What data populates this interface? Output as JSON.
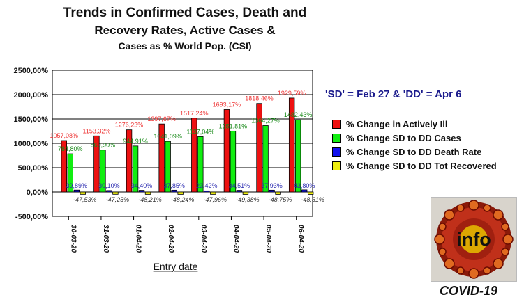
{
  "title_lines": [
    "Trends in Confirmed Cases, Death and",
    "Recovery Rates, Active Cases &",
    "Cases as % World Pop. (CSI)"
  ],
  "annotation": "'SD' = Feb 27 & 'DD' = Apr 6",
  "logo": {
    "text": "info",
    "caption": "COVID-19"
  },
  "chart_data": {
    "type": "bar",
    "xlabel": "Entry date",
    "ylabel": "",
    "ylim": [
      -500,
      2500
    ],
    "yticks": [
      -500,
      0,
      500,
      1000,
      1500,
      2000,
      2500
    ],
    "ytick_labels": [
      "-500,00%",
      "0,00%",
      "500,00%",
      "1000,00%",
      "1500,00%",
      "2000,00%",
      "2500,00%"
    ],
    "grid": true,
    "legend_position": "right",
    "categories": [
      "30-03-20",
      "31-03-20",
      "01-04-20",
      "02-04-20",
      "03-04-20",
      "04-04-20",
      "05-04-20",
      "06-04-20"
    ],
    "series": [
      {
        "name": "% Change in Actively Ill",
        "color": "#ee1111",
        "label_color": "#ee3333",
        "values": [
          1057.08,
          1153.32,
          1276.23,
          1397.67,
          1517.24,
          1693.17,
          1818.46,
          1929.59
        ],
        "labels": [
          "1057,08%",
          "1153,32%",
          "1276,23%",
          "1397,67%",
          "1517,24%",
          "1693,17%",
          "1818,46%",
          "1929,59%"
        ]
      },
      {
        "name": "% Change SD to DD Cases",
        "color": "#11ee11",
        "label_color": "#1a8a1a",
        "values": [
          784.8,
          860.9,
          944.91,
          1041.09,
          1137.04,
          1251.81,
          1364.27,
          1482.43
        ],
        "labels": [
          "784,80%",
          "860,90%",
          "944,91%",
          "1041,09%",
          "1137,04%",
          "1251,81%",
          "1364,27%",
          "1482,43%"
        ]
      },
      {
        "name": "% Change SD to DD Death Rate",
        "color": "#1111ee",
        "label_color": "#2a2ab0",
        "values": [
          39.89,
          30.1,
          34.4,
          37.85,
          23.42,
          34.51,
          37.93,
          43.8
        ],
        "labels": [
          "39,89%",
          "30,10%",
          "34,40%",
          "37,85%",
          "23,42%",
          "34,51%",
          "37,93%",
          "43,80%"
        ]
      },
      {
        "name": "% Change SD to DD Tot Recovered",
        "color": "#eeee11",
        "label_color": "#333333",
        "values": [
          -47.53,
          -47.25,
          -48.21,
          -48.24,
          -47.96,
          -49.38,
          -48.75,
          -48.51
        ],
        "labels": [
          "-47,53%",
          "-47,25%",
          "-48,21%",
          "-48,24%",
          "-47,96%",
          "-49,38%",
          "-48,75%",
          "-48,51%"
        ]
      }
    ]
  }
}
